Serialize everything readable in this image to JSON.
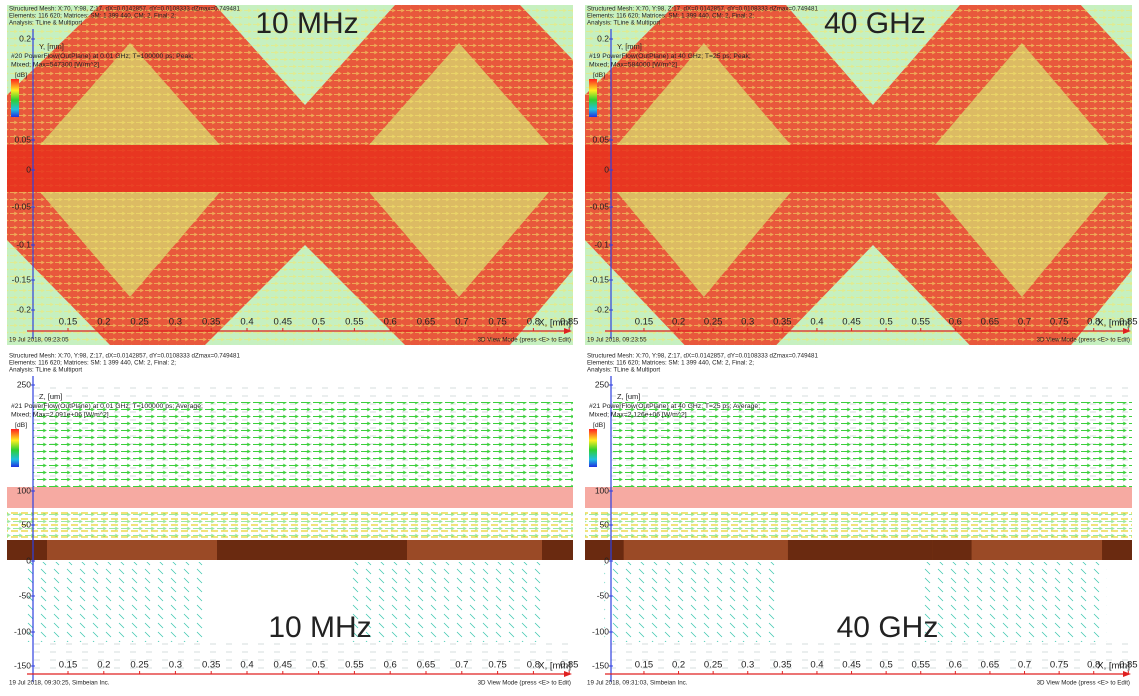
{
  "panels": [
    {
      "header_lines": [
        "Structured Mesh: X:70, Y:98, Z:17, dX=0.0142857, dY=0.0108333 dZmax=0.749481",
        "Elements: 116 620; Matrices: SM: 1 399 440, CM: 2, Final: 2;",
        "Analysis: TLine & Multiport"
      ],
      "axis_label": "Y, [mm]",
      "field_lines": [
        "#20 PowerFlow(OutPlane) at 0.01 GHz; T=100000 ps; Peak;",
        "Mixed; Max=547300 [W/m^2]"
      ],
      "legend_unit": "[dB]",
      "frequency": "10 MHz",
      "yticks": [
        "0.2",
        "0.05",
        "0",
        "-0.05",
        "-0.1",
        "-0.15",
        "-0.2"
      ],
      "xticks": [
        "0.15",
        "0.2",
        "0.25",
        "0.3",
        "0.35",
        "0.4",
        "0.45",
        "0.5",
        "0.55",
        "0.6",
        "0.65",
        "0.7",
        "0.75",
        "0.8",
        "0.85"
      ],
      "x_label": "X, [mm]",
      "footer": "19 Jul 2018, 09:23:05",
      "footer_right": "3D View Mode (press <E> to Edit)"
    },
    {
      "header_lines": [
        "Structured Mesh: X:70, Y:98, Z:17, dX=0.0142857, dY=0.0108333 dZmax=0.749481",
        "Elements: 116 620; Matrices: SM: 1 399 440, CM: 2, Final: 2;",
        "Analysis: TLine & Multiport"
      ],
      "axis_label": "Y, [mm]",
      "field_lines": [
        "#19 PowerFlow(OutPlane) at 40 GHz; T=25 ps; Peak;",
        "Mixed; Max=584000 [W/m^2]"
      ],
      "legend_unit": "[dB]",
      "frequency": "40 GHz",
      "yticks": [
        "0.2",
        "0.05",
        "0",
        "-0.05",
        "-0.1",
        "-0.15",
        "-0.2"
      ],
      "xticks": [
        "0.15",
        "0.2",
        "0.25",
        "0.3",
        "0.35",
        "0.4",
        "0.45",
        "0.5",
        "0.55",
        "0.6",
        "0.65",
        "0.7",
        "0.75",
        "0.8",
        "0.85"
      ],
      "x_label": "X, [mm]",
      "footer": "19 Jul 2018, 09:23:55",
      "footer_right": "3D View Mode (press <E> to Edit)"
    },
    {
      "header_lines": [
        "Structured Mesh: X:70, Y:98, Z:17, dX=0.0142857, dY=0.0108333 dZmax=0.749481",
        "Elements: 116 620; Matrices: SM: 1 399 440, CM: 2, Final: 2;",
        "Analysis: TLine & Multiport"
      ],
      "axis_label": "Z, [um]",
      "field_lines": [
        "#21 PowerFlow(OutPlane) at 0.01 GHz; T=100000 ps; Average;",
        "Mixed; Max=2.091e+06 [W/m^2]"
      ],
      "legend_unit": "[dB]",
      "frequency": "10 MHz",
      "yticks": [
        "250",
        "100",
        "50",
        "0",
        "-50",
        "-100",
        "-150"
      ],
      "xticks": [
        "0.15",
        "0.2",
        "0.25",
        "0.3",
        "0.35",
        "0.4",
        "0.45",
        "0.5",
        "0.55",
        "0.6",
        "0.65",
        "0.7",
        "0.75",
        "0.8",
        "0.85"
      ],
      "x_label": "X, [mm]",
      "footer": "19 Jul 2018, 09:30:25, Simbeian Inc.",
      "footer_right": "3D View Mode (press <E> to Edit)"
    },
    {
      "header_lines": [
        "Structured Mesh: X:70, Y:98, Z:17, dX=0.0142857, dY=0.0108333 dZmax=0.749481",
        "Elements: 116 620; Matrices: SM: 1 399 440, CM: 2, Final: 2;",
        "Analysis: TLine & Multiport"
      ],
      "axis_label": "Z, [um]",
      "field_lines": [
        "#21 PowerFlow(OutPlane) at 40 GHz; T=25 ps; Average;",
        "Mixed; Max=2.126e+06 [W/m^2]"
      ],
      "legend_unit": "[dB]",
      "frequency": "40 GHz",
      "yticks": [
        "250",
        "100",
        "50",
        "0",
        "-50",
        "-100",
        "-150"
      ],
      "xticks": [
        "0.15",
        "0.2",
        "0.25",
        "0.3",
        "0.35",
        "0.4",
        "0.45",
        "0.5",
        "0.55",
        "0.6",
        "0.65",
        "0.7",
        "0.75",
        "0.8",
        "0.85"
      ],
      "x_label": "X, [mm]",
      "footer": "19 Jul 2018, 09:31:03, Simbeian Inc.",
      "footer_right": "3D View Mode (press <E> to Edit)"
    }
  ]
}
